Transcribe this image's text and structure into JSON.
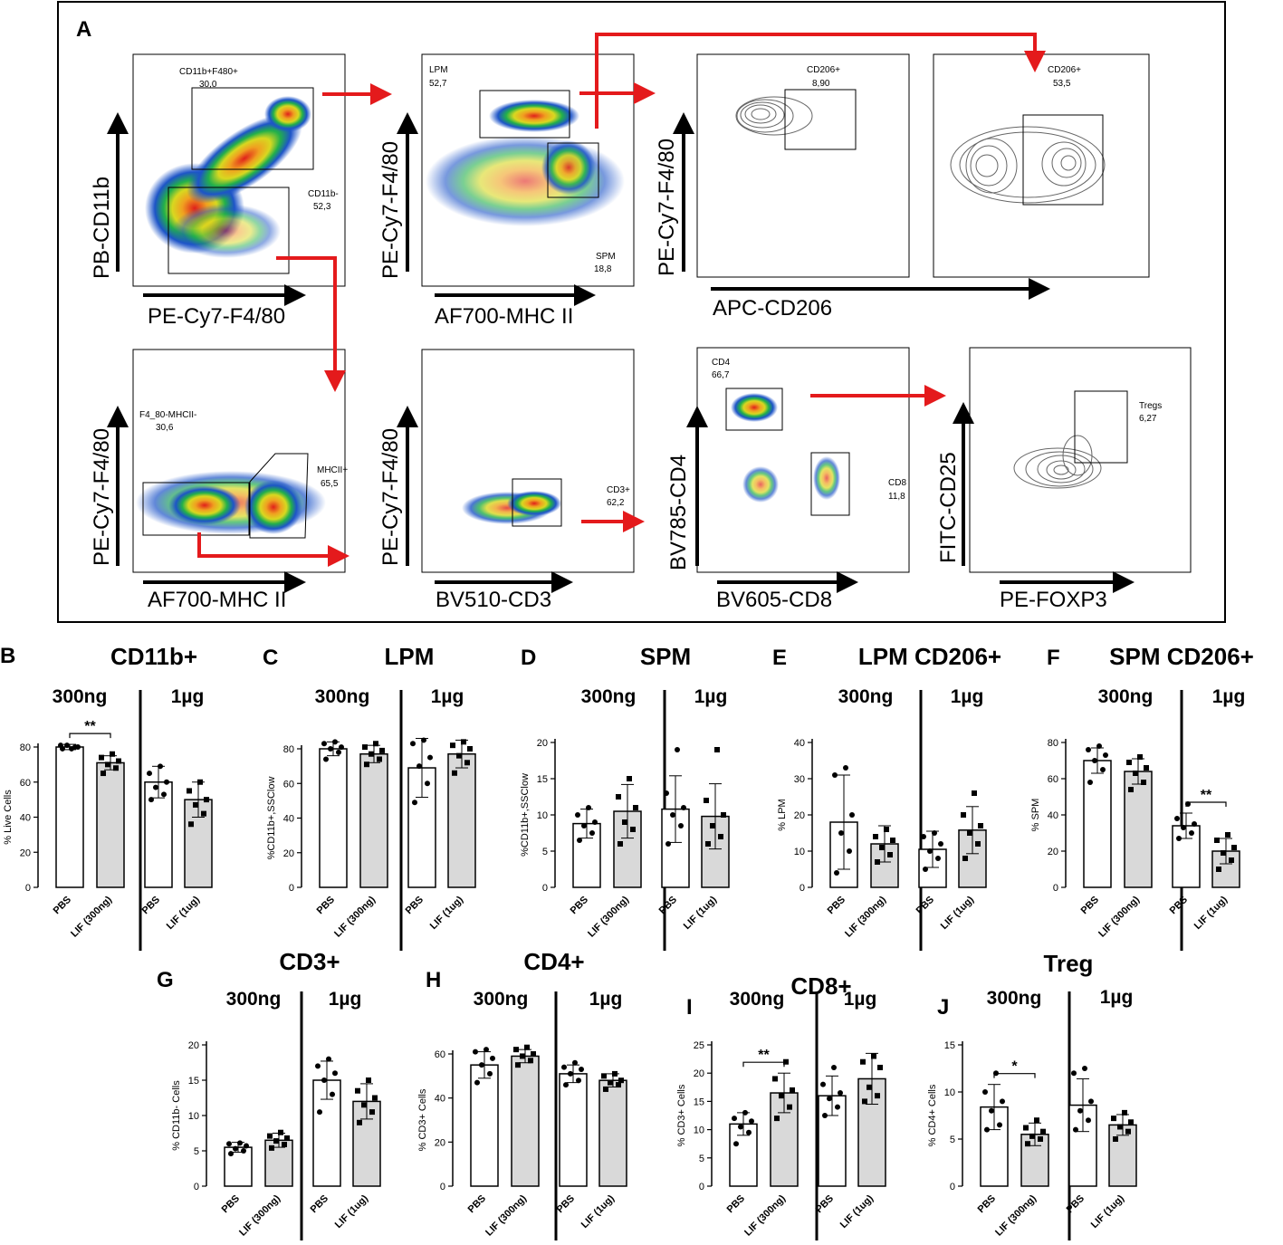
{
  "panel_a": {
    "label": "A",
    "plots": [
      {
        "id": "cd11b",
        "y_axis": "PB-CD11b",
        "x_axis": "PE-Cy7-F4/80",
        "style": "density",
        "gates": [
          {
            "name": "CD11b+F480+",
            "value": "30,0"
          },
          {
            "name": "CD11b-",
            "value": "52,3"
          }
        ]
      },
      {
        "id": "lpm-spm",
        "y_axis": "PE-Cy7-F4/80",
        "x_axis": "AF700-MHC II",
        "style": "density",
        "gates": [
          {
            "name": "LPM",
            "value": "52,7"
          },
          {
            "name": "SPM",
            "value": "18,8"
          }
        ]
      },
      {
        "id": "lpm-cd206",
        "y_axis": "PE-Cy7-F4/80",
        "x_axis": "APC-CD206",
        "style": "contour",
        "gates": [
          {
            "name": "CD206+",
            "value": "8,90"
          }
        ]
      },
      {
        "id": "spm-cd206",
        "y_axis": "",
        "x_axis": "",
        "style": "contour",
        "gates": [
          {
            "name": "CD206+",
            "value": "53,5"
          }
        ]
      },
      {
        "id": "mhcii",
        "y_axis": "PE-Cy7-F4/80",
        "x_axis": "AF700-MHC II",
        "style": "density",
        "gates": [
          {
            "name": "F4_80-MHCII-",
            "value": "30,6"
          },
          {
            "name": "MHCII+",
            "value": "65,5"
          }
        ]
      },
      {
        "id": "cd3",
        "y_axis": "PE-Cy7-F4/80",
        "x_axis": "BV510-CD3",
        "style": "density",
        "gates": [
          {
            "name": "CD3+",
            "value": "62,2"
          }
        ]
      },
      {
        "id": "cd4-cd8",
        "y_axis": "BV785-CD4",
        "x_axis": "BV605-CD8",
        "style": "density",
        "gates": [
          {
            "name": "CD4",
            "value": "66,7"
          },
          {
            "name": "CD8",
            "value": "11,8"
          }
        ]
      },
      {
        "id": "treg",
        "y_axis": "FITC-CD25",
        "x_axis": "PE-FOXP3",
        "style": "contour",
        "gates": [
          {
            "name": "Tregs",
            "value": "6,27"
          }
        ]
      }
    ]
  },
  "chart_data": [
    {
      "type": "bar",
      "label": "B",
      "title": "CD11b+",
      "ylabel": "% Live Cells",
      "ylim": [
        0,
        80
      ],
      "yticks": [
        0,
        20,
        40,
        60,
        80
      ],
      "groups": [
        "300ng",
        "1µg"
      ],
      "categories": [
        "PBS",
        "LIF (300ng)",
        "PBS",
        "LIF (1ug)"
      ],
      "values": [
        80,
        71,
        60,
        50
      ],
      "errors": [
        1.5,
        4,
        9,
        10
      ],
      "sig": {
        "text": "**",
        "between": [
          0,
          1
        ]
      },
      "points": [
        [
          79,
          80,
          81,
          80,
          81,
          79
        ],
        [
          65,
          68,
          70,
          72,
          74,
          76
        ],
        [
          50,
          53,
          57,
          60,
          65,
          69
        ],
        [
          36,
          42,
          47,
          50,
          55,
          60
        ]
      ]
    },
    {
      "type": "bar",
      "label": "C",
      "title": "LPM",
      "ylabel": "%CD11b+,SSClow",
      "ylim": [
        0,
        80
      ],
      "yticks": [
        0,
        20,
        40,
        60,
        80
      ],
      "groups": [
        "300ng",
        "1µg"
      ],
      "categories": [
        "PBS",
        "LIF (300ng)",
        "PBS",
        "LIF (1ug)"
      ],
      "values": [
        80,
        77,
        69,
        77
      ],
      "errors": [
        4,
        5,
        17,
        8
      ],
      "sig": null,
      "points": [
        [
          74,
          78,
          80,
          81,
          83,
          84
        ],
        [
          71,
          74,
          77,
          79,
          81,
          83
        ],
        [
          49,
          60,
          70,
          75,
          83,
          85
        ],
        [
          66,
          72,
          76,
          80,
          82,
          84
        ]
      ]
    },
    {
      "type": "bar",
      "label": "D",
      "title": "SPM",
      "ylabel": "%CD11b+,SSClow",
      "ylim": [
        0,
        20
      ],
      "yticks": [
        0,
        5,
        10,
        15,
        20
      ],
      "groups": [
        "300ng",
        "1µg"
      ],
      "categories": [
        "PBS",
        "LIF (300ng)",
        "PBS",
        "LIF (1ug)"
      ],
      "values": [
        8.8,
        10.5,
        10.8,
        9.8
      ],
      "errors": [
        2,
        3.7,
        4.6,
        4.5
      ],
      "sig": null,
      "points": [
        [
          6.5,
          7.5,
          8.5,
          9,
          10,
          11
        ],
        [
          6,
          8,
          9,
          11,
          12.5,
          15
        ],
        [
          6,
          8.5,
          10,
          11,
          13,
          19
        ],
        [
          6,
          7,
          8.5,
          10,
          12,
          19
        ]
      ]
    },
    {
      "type": "bar",
      "label": "E",
      "title": "LPM CD206+",
      "ylabel": "% LPM",
      "ylim": [
        0,
        40
      ],
      "yticks": [
        0,
        10,
        20,
        30,
        40
      ],
      "groups": [
        "300ng",
        "1µg"
      ],
      "categories": [
        "PBS",
        "LIF (300ng)",
        "PBS",
        "LIF (1ug)"
      ],
      "values": [
        18,
        12,
        10.5,
        15.8
      ],
      "errors": [
        13,
        5,
        5,
        6.5
      ],
      "sig": null,
      "points": [
        [
          4,
          10,
          15,
          20,
          31,
          33
        ],
        [
          7,
          9,
          11,
          13,
          14,
          16
        ],
        [
          5,
          8,
          10,
          12,
          14,
          15
        ],
        [
          8,
          12,
          15,
          17,
          20,
          26
        ]
      ]
    },
    {
      "type": "bar",
      "label": "F",
      "title": "SPM CD206+",
      "ylabel": "% SPM",
      "ylim": [
        0,
        80
      ],
      "yticks": [
        0,
        20,
        40,
        60,
        80
      ],
      "groups": [
        "300ng",
        "1µg"
      ],
      "categories": [
        "PBS",
        "LIF (300ng)",
        "PBS",
        "LIF (1ug)"
      ],
      "values": [
        70,
        64,
        34,
        20
      ],
      "errors": [
        7,
        7,
        7,
        7
      ],
      "sig": {
        "text": "**",
        "between": [
          2,
          3
        ]
      },
      "points": [
        [
          58,
          65,
          70,
          73,
          76,
          78
        ],
        [
          54,
          58,
          63,
          66,
          69,
          72
        ],
        [
          27,
          30,
          33,
          35,
          38,
          46
        ],
        [
          10,
          15,
          19,
          22,
          26,
          29
        ]
      ]
    },
    {
      "type": "bar",
      "label": "G",
      "title": "CD3+",
      "ylabel": "% CD11b- Cells",
      "ylim": [
        0,
        20
      ],
      "yticks": [
        0,
        5,
        10,
        15,
        20
      ],
      "groups": [
        "300ng",
        "1µg"
      ],
      "categories": [
        "PBS",
        "LIF (300ng)",
        "PBS",
        "LIF (1ug)"
      ],
      "values": [
        5.5,
        6.5,
        15,
        12
      ],
      "errors": [
        0.7,
        1,
        2.7,
        2.5
      ],
      "sig": null,
      "points": [
        [
          4.6,
          5,
          5.3,
          5.7,
          6,
          6.1
        ],
        [
          5.4,
          5.9,
          6.4,
          6.8,
          7.1,
          7.6
        ],
        [
          10.5,
          13,
          15,
          16,
          17,
          18
        ],
        [
          9,
          10.5,
          11.5,
          12.5,
          13.5,
          15
        ]
      ]
    },
    {
      "type": "bar",
      "label": "H",
      "title": "CD4+",
      "ylabel": "% CD3+ Cells",
      "ylim": [
        0,
        60
      ],
      "yticks": [
        0,
        20,
        40,
        60
      ],
      "groups": [
        "300ng",
        "1µg"
      ],
      "categories": [
        "PBS",
        "LIF (300ng)",
        "PBS",
        "LIF (1ug)"
      ],
      "values": [
        55,
        59,
        51,
        48
      ],
      "errors": [
        6,
        3,
        4,
        3
      ],
      "sig": null,
      "points": [
        [
          47,
          51,
          55,
          58,
          61,
          62
        ],
        [
          55,
          57,
          59,
          60,
          62,
          63
        ],
        [
          46,
          48,
          51,
          53,
          54,
          56
        ],
        [
          44,
          46,
          47,
          48,
          50,
          51
        ]
      ]
    },
    {
      "type": "bar",
      "label": "I",
      "title": "CD8+",
      "ylabel": "% CD3+ Cells",
      "ylim": [
        0,
        25
      ],
      "yticks": [
        0,
        5,
        10,
        15,
        20,
        25
      ],
      "groups": [
        "300ng",
        "1µg"
      ],
      "categories": [
        "PBS",
        "LIF (300ng)",
        "PBS",
        "LIF (1ug)"
      ],
      "values": [
        11,
        16.5,
        16,
        19
      ],
      "errors": [
        2,
        3.5,
        3.5,
        4.5
      ],
      "sig": {
        "text": "**",
        "between": [
          0,
          1
        ]
      },
      "points": [
        [
          7.5,
          9.5,
          10.5,
          11.5,
          12,
          13
        ],
        [
          12,
          14,
          16,
          17,
          19,
          22
        ],
        [
          12.5,
          14,
          15.5,
          16.5,
          18,
          21
        ],
        [
          15,
          16,
          17.5,
          21,
          22,
          23
        ]
      ]
    },
    {
      "type": "bar",
      "label": "J",
      "title": "Treg",
      "ylabel": "% CD4+ Cells",
      "ylim": [
        0,
        15
      ],
      "yticks": [
        0,
        5,
        10,
        15
      ],
      "groups": [
        "300ng",
        "1µg"
      ],
      "categories": [
        "PBS",
        "LIF (300ng)",
        "PBS",
        "LIF (1ug)"
      ],
      "values": [
        8.4,
        5.5,
        8.6,
        6.5
      ],
      "errors": [
        2.4,
        1.2,
        2.8,
        1.1
      ],
      "sig": {
        "text": "*",
        "between": [
          0,
          1
        ]
      },
      "points": [
        [
          6,
          6.5,
          8,
          9,
          10,
          12
        ],
        [
          4.5,
          5,
          5.3,
          5.8,
          6.2,
          7
        ],
        [
          6,
          7,
          8,
          9,
          12,
          12.5
        ],
        [
          5,
          5.8,
          6.3,
          6.8,
          7.2,
          7.8
        ]
      ]
    }
  ]
}
